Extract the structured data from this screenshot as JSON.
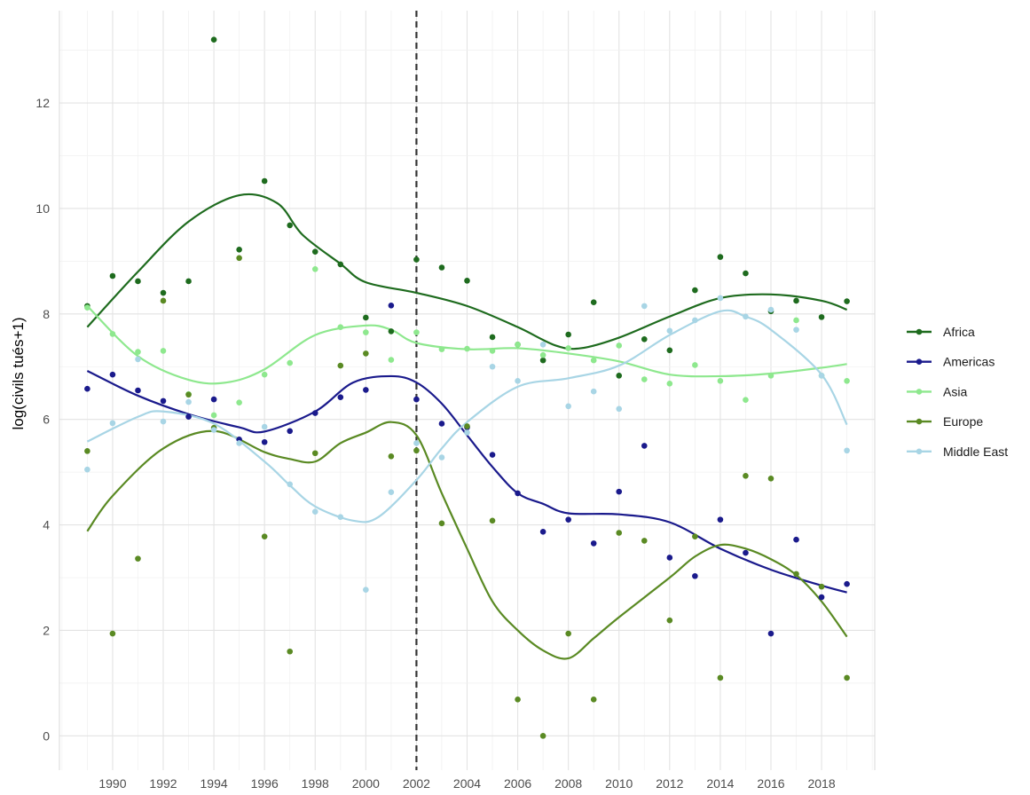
{
  "chart_data": {
    "type": "scatter",
    "title": "",
    "xlabel": "",
    "ylabel": "log(civils tués+1)",
    "xlim": [
      1987.9,
      2020.1
    ],
    "ylim": [
      -0.65,
      13.75
    ],
    "x_ticks": [
      1990,
      1992,
      1994,
      1996,
      1998,
      2000,
      2002,
      2004,
      2006,
      2008,
      2010,
      2012,
      2014,
      2016,
      2018
    ],
    "y_ticks": [
      0,
      2,
      4,
      6,
      8,
      10,
      12
    ],
    "grid": true,
    "legend_position": "right",
    "reference_line": {
      "x": 2002,
      "style": "dashed",
      "color": "#333333"
    },
    "series": [
      {
        "name": "Africa",
        "color": "#1e6b1e",
        "points": [
          [
            1989,
            8.15
          ],
          [
            1990,
            8.72
          ],
          [
            1991,
            8.62
          ],
          [
            1992,
            8.4
          ],
          [
            1993,
            8.62
          ],
          [
            1994,
            13.2
          ],
          [
            1995,
            9.22
          ],
          [
            1996,
            10.52
          ],
          [
            1997,
            9.68
          ],
          [
            1998,
            9.18
          ],
          [
            1999,
            8.94
          ],
          [
            2000,
            7.93
          ],
          [
            2001,
            7.67
          ],
          [
            2002,
            9.03
          ],
          [
            2003,
            8.88
          ],
          [
            2004,
            8.63
          ],
          [
            2005,
            7.56
          ],
          [
            2006,
            7.42
          ],
          [
            2007,
            7.12
          ],
          [
            2008,
            7.61
          ],
          [
            2009,
            8.22
          ],
          [
            2010,
            6.83
          ],
          [
            2011,
            7.52
          ],
          [
            2012,
            7.31
          ],
          [
            2013,
            8.45
          ],
          [
            2014,
            9.08
          ],
          [
            2015,
            8.77
          ],
          [
            2016,
            8.05
          ],
          [
            2017,
            8.25
          ],
          [
            2018,
            7.94
          ],
          [
            2019,
            8.24
          ]
        ],
        "smooth": [
          [
            1989,
            7.75
          ],
          [
            1991,
            8.8
          ],
          [
            1993,
            9.75
          ],
          [
            1995,
            10.25
          ],
          [
            1996.5,
            10.1
          ],
          [
            1997.5,
            9.5
          ],
          [
            1999,
            8.95
          ],
          [
            2000,
            8.6
          ],
          [
            2002,
            8.4
          ],
          [
            2004,
            8.15
          ],
          [
            2006,
            7.75
          ],
          [
            2007.5,
            7.4
          ],
          [
            2008.5,
            7.35
          ],
          [
            2010,
            7.55
          ],
          [
            2012,
            7.95
          ],
          [
            2014,
            8.3
          ],
          [
            2016,
            8.37
          ],
          [
            2018,
            8.25
          ],
          [
            2019,
            8.08
          ]
        ]
      },
      {
        "name": "Americas",
        "color": "#1a1a8c",
        "points": [
          [
            1989,
            6.58
          ],
          [
            1990,
            6.85
          ],
          [
            1991,
            6.55
          ],
          [
            1992,
            6.35
          ],
          [
            1993,
            6.05
          ],
          [
            1994,
            6.38
          ],
          [
            1995,
            5.62
          ],
          [
            1996,
            5.57
          ],
          [
            1997,
            5.78
          ],
          [
            1998,
            6.12
          ],
          [
            1999,
            6.42
          ],
          [
            2000,
            6.56
          ],
          [
            2001,
            8.16
          ],
          [
            2002,
            6.38
          ],
          [
            2003,
            5.92
          ],
          [
            2004,
            5.85
          ],
          [
            2005,
            5.33
          ],
          [
            2006,
            4.6
          ],
          [
            2007,
            3.87
          ],
          [
            2008,
            4.1
          ],
          [
            2009,
            3.65
          ],
          [
            2010,
            4.63
          ],
          [
            2011,
            5.5
          ],
          [
            2012,
            3.38
          ],
          [
            2013,
            3.03
          ],
          [
            2014,
            4.1
          ],
          [
            2015,
            3.47
          ],
          [
            2016,
            1.94
          ],
          [
            2017,
            3.72
          ],
          [
            2018,
            2.63
          ],
          [
            2019,
            2.88
          ]
        ],
        "smooth": [
          [
            1989,
            6.92
          ],
          [
            1991,
            6.45
          ],
          [
            1993,
            6.1
          ],
          [
            1995,
            5.85
          ],
          [
            1996,
            5.77
          ],
          [
            1998,
            6.15
          ],
          [
            1999.5,
            6.7
          ],
          [
            2001,
            6.82
          ],
          [
            2002,
            6.7
          ],
          [
            2003,
            6.3
          ],
          [
            2004,
            5.7
          ],
          [
            2005,
            5.1
          ],
          [
            2006,
            4.6
          ],
          [
            2007,
            4.4
          ],
          [
            2008,
            4.22
          ],
          [
            2010,
            4.2
          ],
          [
            2012,
            4.05
          ],
          [
            2014,
            3.55
          ],
          [
            2016,
            3.15
          ],
          [
            2018,
            2.85
          ],
          [
            2019,
            2.72
          ]
        ]
      },
      {
        "name": "Asia",
        "color": "#8ee88e",
        "points": [
          [
            1989,
            8.12
          ],
          [
            1990,
            7.62
          ],
          [
            1991,
            7.28
          ],
          [
            1992,
            7.3
          ],
          [
            1993,
            6.48
          ],
          [
            1994,
            6.08
          ],
          [
            1995,
            6.32
          ],
          [
            1996,
            6.85
          ],
          [
            1997,
            7.07
          ],
          [
            1998,
            8.85
          ],
          [
            1999,
            7.75
          ],
          [
            2000,
            7.65
          ],
          [
            2001,
            7.13
          ],
          [
            2002,
            7.65
          ],
          [
            2003,
            7.33
          ],
          [
            2004,
            7.34
          ],
          [
            2005,
            7.3
          ],
          [
            2006,
            7.42
          ],
          [
            2007,
            7.22
          ],
          [
            2008,
            7.35
          ],
          [
            2009,
            7.12
          ],
          [
            2010,
            7.4
          ],
          [
            2011,
            6.76
          ],
          [
            2012,
            6.68
          ],
          [
            2013,
            7.03
          ],
          [
            2014,
            6.73
          ],
          [
            2015,
            6.37
          ],
          [
            2016,
            6.83
          ],
          [
            2017,
            7.88
          ],
          [
            2018,
            6.83
          ],
          [
            2019,
            6.73
          ]
        ],
        "smooth": [
          [
            1989,
            8.15
          ],
          [
            1991,
            7.2
          ],
          [
            1993,
            6.75
          ],
          [
            1994.5,
            6.7
          ],
          [
            1996,
            6.95
          ],
          [
            1998,
            7.6
          ],
          [
            2000,
            7.78
          ],
          [
            2001,
            7.7
          ],
          [
            2002,
            7.45
          ],
          [
            2004,
            7.33
          ],
          [
            2006,
            7.35
          ],
          [
            2008,
            7.25
          ],
          [
            2010,
            7.1
          ],
          [
            2012,
            6.85
          ],
          [
            2014,
            6.82
          ],
          [
            2016,
            6.87
          ],
          [
            2018,
            6.98
          ],
          [
            2019,
            7.05
          ]
        ]
      },
      {
        "name": "Europe",
        "color": "#5a8a23",
        "points": [
          [
            1989,
            5.4
          ],
          [
            1990,
            1.94
          ],
          [
            1991,
            3.36
          ],
          [
            1992,
            8.25
          ],
          [
            1993,
            6.47
          ],
          [
            1994,
            5.84
          ],
          [
            1995,
            9.06
          ],
          [
            1996,
            3.78
          ],
          [
            1997,
            1.6
          ],
          [
            1998,
            5.36
          ],
          [
            1999,
            7.02
          ],
          [
            2000,
            7.25
          ],
          [
            2001,
            5.3
          ],
          [
            2002,
            5.41
          ],
          [
            2003,
            4.03
          ],
          [
            2004,
            5.87
          ],
          [
            2005,
            4.08
          ],
          [
            2006,
            0.69
          ],
          [
            2007,
            0.0
          ],
          [
            2008,
            1.94
          ],
          [
            2009,
            0.69
          ],
          [
            2010,
            3.85
          ],
          [
            2011,
            3.7
          ],
          [
            2012,
            2.19
          ],
          [
            2013,
            3.78
          ],
          [
            2014,
            1.1
          ],
          [
            2015,
            4.93
          ],
          [
            2016,
            4.88
          ],
          [
            2017,
            3.07
          ],
          [
            2018,
            2.83
          ],
          [
            2019,
            1.1
          ]
        ],
        "smooth": [
          [
            1989,
            3.88
          ],
          [
            1990,
            4.55
          ],
          [
            1992,
            5.45
          ],
          [
            1994,
            5.78
          ],
          [
            1996,
            5.38
          ],
          [
            1997,
            5.25
          ],
          [
            1998,
            5.2
          ],
          [
            1999,
            5.55
          ],
          [
            2000,
            5.75
          ],
          [
            2001,
            5.95
          ],
          [
            2002,
            5.7
          ],
          [
            2003,
            4.6
          ],
          [
            2004,
            3.55
          ],
          [
            2005,
            2.55
          ],
          [
            2006,
            2.0
          ],
          [
            2007,
            1.62
          ],
          [
            2008,
            1.47
          ],
          [
            2009,
            1.85
          ],
          [
            2010,
            2.25
          ],
          [
            2012,
            3.0
          ],
          [
            2013,
            3.4
          ],
          [
            2014,
            3.62
          ],
          [
            2015,
            3.55
          ],
          [
            2016,
            3.35
          ],
          [
            2017,
            3.05
          ],
          [
            2018,
            2.55
          ],
          [
            2019,
            1.88
          ]
        ]
      },
      {
        "name": "Middle East",
        "color": "#a8d5e5",
        "points": [
          [
            1989,
            5.05
          ],
          [
            1990,
            5.93
          ],
          [
            1991,
            7.14
          ],
          [
            1992,
            5.96
          ],
          [
            1993,
            6.33
          ],
          [
            1994,
            5.8
          ],
          [
            1995,
            5.55
          ],
          [
            1996,
            5.86
          ],
          [
            1997,
            4.77
          ],
          [
            1998,
            4.25
          ],
          [
            1999,
            4.15
          ],
          [
            2000,
            2.77
          ],
          [
            2001,
            4.62
          ],
          [
            2002,
            5.55
          ],
          [
            2003,
            5.28
          ],
          [
            2004,
            5.75
          ],
          [
            2005,
            7.0
          ],
          [
            2006,
            6.73
          ],
          [
            2007,
            7.42
          ],
          [
            2008,
            6.25
          ],
          [
            2009,
            6.53
          ],
          [
            2010,
            6.2
          ],
          [
            2011,
            8.15
          ],
          [
            2012,
            7.68
          ],
          [
            2013,
            7.88
          ],
          [
            2014,
            8.3
          ],
          [
            2015,
            7.95
          ],
          [
            2016,
            8.08
          ],
          [
            2017,
            7.7
          ],
          [
            2018,
            6.83
          ],
          [
            2019,
            5.41
          ]
        ],
        "smooth": [
          [
            1989,
            5.58
          ],
          [
            1991,
            6.05
          ],
          [
            1992,
            6.15
          ],
          [
            1994,
            5.92
          ],
          [
            1996,
            5.2
          ],
          [
            1997,
            4.75
          ],
          [
            1998,
            4.35
          ],
          [
            1999.5,
            4.08
          ],
          [
            2000.5,
            4.15
          ],
          [
            2002,
            4.85
          ],
          [
            2003,
            5.45
          ],
          [
            2004,
            5.95
          ],
          [
            2006,
            6.62
          ],
          [
            2008,
            6.78
          ],
          [
            2010,
            7.02
          ],
          [
            2012,
            7.6
          ],
          [
            2014,
            8.05
          ],
          [
            2015,
            7.95
          ],
          [
            2016,
            7.7
          ],
          [
            2018,
            6.85
          ],
          [
            2019,
            5.9
          ]
        ]
      }
    ]
  }
}
